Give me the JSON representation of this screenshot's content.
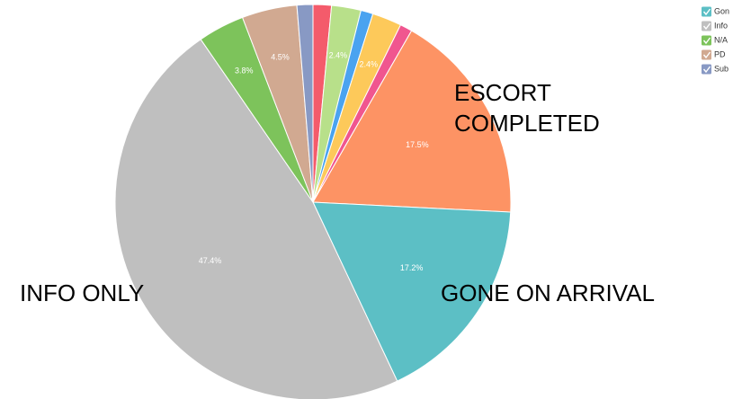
{
  "chart_data": {
    "type": "pie",
    "categories": [
      null,
      null,
      null,
      null,
      null,
      "ESCORT COMPLETED",
      "GONE ON ARRIVAL",
      "INFO ONLY",
      null,
      null,
      null
    ],
    "values": [
      1.5,
      2.4,
      1.0,
      2.4,
      1.0,
      17.5,
      17.2,
      47.4,
      3.8,
      4.5,
      1.3
    ],
    "value_labels": [
      null,
      "2.4%",
      null,
      "2.4%",
      null,
      "17.5%",
      "17.2%",
      "47.4%",
      "3.8%",
      "4.5%",
      null
    ],
    "colors": [
      "#f45b6b",
      "#b8e08a",
      "#4aa3f0",
      "#fdc95a",
      "#f0568f",
      "#fd9364",
      "#5cbfc5",
      "#bfbfbf",
      "#7dc35b",
      "#d1a991",
      "#8899c4"
    ],
    "legend": [
      {
        "label": "Gon",
        "color": "#5cbfc5"
      },
      {
        "label": "Info",
        "color": "#bfbfbf"
      },
      {
        "label": "N/A",
        "color": "#7dc35b"
      },
      {
        "label": "PD",
        "color": "#d1a991"
      },
      {
        "label": "Sub",
        "color": "#8899c4"
      }
    ]
  }
}
